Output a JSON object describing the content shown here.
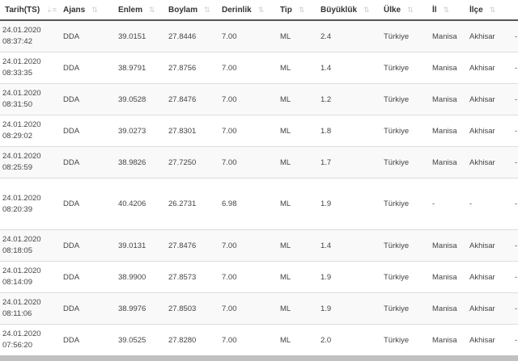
{
  "columns": [
    "Tarih(TS)",
    "Ajans",
    "Enlem",
    "Boylam",
    "Derinlik",
    "Tip",
    "Büyüklük",
    "Ülke",
    "İl",
    "İlçe"
  ],
  "sort_icon": "sort-arrows-icon",
  "rows": [
    {
      "date": "24.01.2020",
      "time": "08:37:42",
      "ajans": "DDA",
      "enlem": "39.0151",
      "boylam": "27.8446",
      "derinlik": "7.00",
      "tip": "ML",
      "buyukluk": "2.4",
      "ulke": "Türkiye",
      "il": "Manisa",
      "ilce": "Akhisar",
      "extra": "-"
    },
    {
      "date": "24.01.2020",
      "time": "08:33:35",
      "ajans": "DDA",
      "enlem": "38.9791",
      "boylam": "27.8756",
      "derinlik": "7.00",
      "tip": "ML",
      "buyukluk": "1.4",
      "ulke": "Türkiye",
      "il": "Manisa",
      "ilce": "Akhisar",
      "extra": "-"
    },
    {
      "date": "24.01.2020",
      "time": "08:31:50",
      "ajans": "DDA",
      "enlem": "39.0528",
      "boylam": "27.8476",
      "derinlik": "7.00",
      "tip": "ML",
      "buyukluk": "1.2",
      "ulke": "Türkiye",
      "il": "Manisa",
      "ilce": "Akhisar",
      "extra": "-"
    },
    {
      "date": "24.01.2020",
      "time": "08:29:02",
      "ajans": "DDA",
      "enlem": "39.0273",
      "boylam": "27.8301",
      "derinlik": "7.00",
      "tip": "ML",
      "buyukluk": "1.8",
      "ulke": "Türkiye",
      "il": "Manisa",
      "ilce": "Akhisar",
      "extra": "-"
    },
    {
      "date": "24.01.2020",
      "time": "08:25:59",
      "ajans": "DDA",
      "enlem": "38.9826",
      "boylam": "27.7250",
      "derinlik": "7.00",
      "tip": "ML",
      "buyukluk": "1.7",
      "ulke": "Türkiye",
      "il": "Manisa",
      "ilce": "Akhisar",
      "extra": "-"
    },
    {
      "date": "24.01.2020",
      "time": "08:20:39",
      "ajans": "DDA",
      "enlem": "40.4206",
      "boylam": "26.2731",
      "derinlik": "6.98",
      "tip": "ML",
      "buyukluk": "1.9",
      "ulke": "Türkiye",
      "il": "-",
      "ilce": "-",
      "extra": "-"
    },
    {
      "date": "24.01.2020",
      "time": "08:18:05",
      "ajans": "DDA",
      "enlem": "39.0131",
      "boylam": "27.8476",
      "derinlik": "7.00",
      "tip": "ML",
      "buyukluk": "1.4",
      "ulke": "Türkiye",
      "il": "Manisa",
      "ilce": "Akhisar",
      "extra": "-"
    },
    {
      "date": "24.01.2020",
      "time": "08:14:09",
      "ajans": "DDA",
      "enlem": "38.9900",
      "boylam": "27.8573",
      "derinlik": "7.00",
      "tip": "ML",
      "buyukluk": "1.9",
      "ulke": "Türkiye",
      "il": "Manisa",
      "ilce": "Akhisar",
      "extra": "-"
    },
    {
      "date": "24.01.2020",
      "time": "08:11:06",
      "ajans": "DDA",
      "enlem": "38.9976",
      "boylam": "27.8503",
      "derinlik": "7.00",
      "tip": "ML",
      "buyukluk": "1.9",
      "ulke": "Türkiye",
      "il": "Manisa",
      "ilce": "Akhisar",
      "extra": "-"
    },
    {
      "date": "24.01.2020",
      "time": "07:56:20",
      "ajans": "DDA",
      "enlem": "39.0525",
      "boylam": "27.8280",
      "derinlik": "7.00",
      "tip": "ML",
      "buyukluk": "2.0",
      "ulke": "Türkiye",
      "il": "Manisa",
      "ilce": "Akhisar",
      "extra": "-"
    }
  ]
}
